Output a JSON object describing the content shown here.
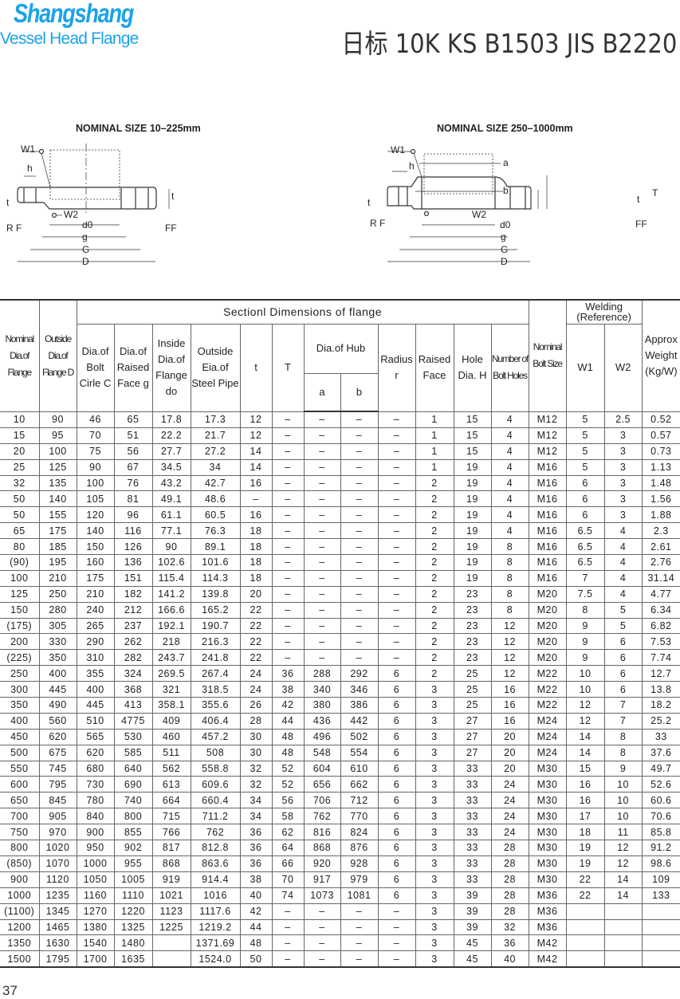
{
  "header": {
    "brand": "Shangshang",
    "brand_sub": "Vessel Head Flange",
    "title": "日标 10K KS B1503 JIS B2220"
  },
  "diagrams": [
    {
      "title": "NOMINAL SIZE 10–225mm",
      "labels": {
        "w1": "W1",
        "h": "h",
        "t_left": "t",
        "rf": "R F",
        "w2": "W2",
        "d0": "d0",
        "g": "g",
        "G": "G",
        "D": "D",
        "ff": "FF",
        "t_right": "t"
      }
    },
    {
      "title": "NOMINAL SIZE 250–1000mm",
      "labels": {
        "w1": "W1",
        "h": "h",
        "a": "a",
        "b": "b",
        "t_left": "t",
        "rf": "R F",
        "w2": "W2",
        "d0": "d0",
        "g": "g",
        "G": "G",
        "D": "D",
        "ff": "FF",
        "T": "T",
        "t_right": "t"
      }
    }
  ],
  "table": {
    "section_header": "Sectionl Dimensions of flange",
    "welding_header": "Welding (Reference)",
    "hub_header": "Dia.of Hub",
    "columns": {
      "nominal": "Nominal Dia.of Flange",
      "outside": "Outside Dia.of Flange D",
      "bolt_circle": "Dia.of Bolt Cirle C",
      "raised_dia": "Dia.of Raised Face g",
      "inside": "Inside Dia.of Flange do",
      "pipe": "Outside Eia.of Steel Pipe",
      "t": "t",
      "T": "T",
      "a": "a",
      "b": "b",
      "radius": "Radius r",
      "raised_face": "Raised Face",
      "hole": "Hole Dia. H",
      "holes": "Number of Bolt Holes",
      "bolt_size": "Nominal Bolt Size",
      "w1": "W1",
      "w2": "W2",
      "weight": "Approx Weight (Kg/W)"
    },
    "rows": [
      [
        "10",
        "90",
        "46",
        "65",
        "17.8",
        "17.3",
        "12",
        "–",
        "–",
        "–",
        "–",
        "1",
        "15",
        "4",
        "M12",
        "5",
        "2.5",
        "0.52"
      ],
      [
        "15",
        "95",
        "70",
        "51",
        "22.2",
        "21.7",
        "12",
        "–",
        "–",
        "–",
        "–",
        "1",
        "15",
        "4",
        "M12",
        "5",
        "3",
        "0.57"
      ],
      [
        "20",
        "100",
        "75",
        "56",
        "27.7",
        "27.2",
        "14",
        "–",
        "–",
        "–",
        "–",
        "1",
        "15",
        "4",
        "M12",
        "5",
        "3",
        "0.73"
      ],
      [
        "25",
        "125",
        "90",
        "67",
        "34.5",
        "34",
        "14",
        "–",
        "–",
        "–",
        "–",
        "1",
        "19",
        "4",
        "M16",
        "5",
        "3",
        "1.13"
      ],
      [
        "32",
        "135",
        "100",
        "76",
        "43.2",
        "42.7",
        "16",
        "–",
        "–",
        "–",
        "–",
        "2",
        "19",
        "4",
        "M16",
        "6",
        "3",
        "1.48"
      ],
      [
        "50",
        "140",
        "105",
        "81",
        "49.1",
        "48.6",
        "–",
        "–",
        "–",
        "–",
        "–",
        "2",
        "19",
        "4",
        "M16",
        "6",
        "3",
        "1.56"
      ],
      [
        "50",
        "155",
        "120",
        "96",
        "61.1",
        "60.5",
        "16",
        "–",
        "–",
        "–",
        "–",
        "2",
        "19",
        "4",
        "M16",
        "6",
        "3",
        "1.88"
      ],
      [
        "65",
        "175",
        "140",
        "116",
        "77.1",
        "76.3",
        "18",
        "–",
        "–",
        "–",
        "–",
        "2",
        "19",
        "4",
        "M16",
        "6.5",
        "4",
        "2.3"
      ],
      [
        "80",
        "185",
        "150",
        "126",
        "90",
        "89.1",
        "18",
        "–",
        "–",
        "–",
        "–",
        "2",
        "19",
        "8",
        "M16",
        "6.5",
        "4",
        "2.61"
      ],
      [
        "(90)",
        "195",
        "160",
        "136",
        "102.6",
        "101.6",
        "18",
        "–",
        "–",
        "–",
        "–",
        "2",
        "19",
        "8",
        "M16",
        "6.5",
        "4",
        "2.76"
      ],
      [
        "100",
        "210",
        "175",
        "151",
        "115.4",
        "114.3",
        "18",
        "–",
        "–",
        "–",
        "–",
        "2",
        "19",
        "8",
        "M16",
        "7",
        "4",
        "31.14"
      ],
      [
        "125",
        "250",
        "210",
        "182",
        "141.2",
        "139.8",
        "20",
        "–",
        "–",
        "–",
        "–",
        "2",
        "23",
        "8",
        "M20",
        "7.5",
        "4",
        "4.77"
      ],
      [
        "150",
        "280",
        "240",
        "212",
        "166.6",
        "165.2",
        "22",
        "–",
        "–",
        "–",
        "–",
        "2",
        "23",
        "8",
        "M20",
        "8",
        "5",
        "6.34"
      ],
      [
        "(175)",
        "305",
        "265",
        "237",
        "192.1",
        "190.7",
        "22",
        "–",
        "–",
        "–",
        "–",
        "2",
        "23",
        "12",
        "M20",
        "9",
        "5",
        "6.82"
      ],
      [
        "200",
        "330",
        "290",
        "262",
        "218",
        "216.3",
        "22",
        "–",
        "–",
        "–",
        "–",
        "2",
        "23",
        "12",
        "M20",
        "9",
        "6",
        "7.53"
      ],
      [
        "(225)",
        "350",
        "310",
        "282",
        "243.7",
        "241.8",
        "22",
        "–",
        "–",
        "–",
        "–",
        "2",
        "23",
        "12",
        "M20",
        "9",
        "6",
        "7.74"
      ],
      [
        "250",
        "400",
        "355",
        "324",
        "269.5",
        "267.4",
        "24",
        "36",
        "288",
        "292",
        "6",
        "2",
        "25",
        "12",
        "M22",
        "10",
        "6",
        "12.7"
      ],
      [
        "300",
        "445",
        "400",
        "368",
        "321",
        "318.5",
        "24",
        "38",
        "340",
        "346",
        "6",
        "3",
        "25",
        "16",
        "M22",
        "10",
        "6",
        "13.8"
      ],
      [
        "350",
        "490",
        "445",
        "413",
        "358.1",
        "355.6",
        "26",
        "42",
        "380",
        "386",
        "6",
        "3",
        "25",
        "16",
        "M22",
        "12",
        "7",
        "18.2"
      ],
      [
        "400",
        "560",
        "510",
        "4775",
        "409",
        "406.4",
        "28",
        "44",
        "436",
        "442",
        "6",
        "3",
        "27",
        "16",
        "M24",
        "12",
        "7",
        "25.2"
      ],
      [
        "450",
        "620",
        "565",
        "530",
        "460",
        "457.2",
        "30",
        "48",
        "496",
        "502",
        "6",
        "3",
        "27",
        "20",
        "M24",
        "14",
        "8",
        "33"
      ],
      [
        "500",
        "675",
        "620",
        "585",
        "511",
        "508",
        "30",
        "48",
        "548",
        "554",
        "6",
        "3",
        "27",
        "20",
        "M24",
        "14",
        "8",
        "37.6"
      ],
      [
        "550",
        "745",
        "680",
        "640",
        "562",
        "558.8",
        "32",
        "52",
        "604",
        "610",
        "6",
        "3",
        "33",
        "20",
        "M30",
        "15",
        "9",
        "49.7"
      ],
      [
        "600",
        "795",
        "730",
        "690",
        "613",
        "609.6",
        "32",
        "52",
        "656",
        "662",
        "6",
        "3",
        "33",
        "24",
        "M30",
        "16",
        "10",
        "52.6"
      ],
      [
        "650",
        "845",
        "780",
        "740",
        "664",
        "660.4",
        "34",
        "56",
        "706",
        "712",
        "6",
        "3",
        "33",
        "24",
        "M30",
        "16",
        "10",
        "60.6"
      ],
      [
        "700",
        "905",
        "840",
        "800",
        "715",
        "711.2",
        "34",
        "58",
        "762",
        "770",
        "6",
        "3",
        "33",
        "24",
        "M30",
        "17",
        "10",
        "70.6"
      ],
      [
        "750",
        "970",
        "900",
        "855",
        "766",
        "762",
        "36",
        "62",
        "816",
        "824",
        "6",
        "3",
        "33",
        "24",
        "M30",
        "18",
        "11",
        "85.8"
      ],
      [
        "800",
        "1020",
        "950",
        "902",
        "817",
        "812.8",
        "36",
        "64",
        "868",
        "876",
        "6",
        "3",
        "33",
        "28",
        "M30",
        "19",
        "12",
        "91.2"
      ],
      [
        "(850)",
        "1070",
        "1000",
        "955",
        "868",
        "863.6",
        "36",
        "66",
        "920",
        "928",
        "6",
        "3",
        "33",
        "28",
        "M30",
        "19",
        "12",
        "98.6"
      ],
      [
        "900",
        "1120",
        "1050",
        "1005",
        "919",
        "914.4",
        "38",
        "70",
        "917",
        "979",
        "6",
        "3",
        "33",
        "28",
        "M30",
        "22",
        "14",
        "109"
      ],
      [
        "1000",
        "1235",
        "1160",
        "1110",
        "1021",
        "1016",
        "40",
        "74",
        "1073",
        "1081",
        "6",
        "3",
        "39",
        "28",
        "M36",
        "22",
        "14",
        "133"
      ],
      [
        "(1100)",
        "1345",
        "1270",
        "1220",
        "1123",
        "1117.6",
        "42",
        "–",
        "–",
        "–",
        "–",
        "3",
        "39",
        "28",
        "M36",
        "",
        "",
        ""
      ],
      [
        "1200",
        "1465",
        "1380",
        "1325",
        "1225",
        "1219.2",
        "44",
        "–",
        "–",
        "–",
        "–",
        "3",
        "39",
        "32",
        "M36",
        "",
        "",
        ""
      ],
      [
        "1350",
        "1630",
        "1540",
        "1480",
        "",
        "1371.69",
        "48",
        "–",
        "–",
        "–",
        "–",
        "3",
        "45",
        "36",
        "M42",
        "",
        "",
        ""
      ],
      [
        "1500",
        "1795",
        "1700",
        "1635",
        "",
        "1524.0",
        "50",
        "–",
        "–",
        "–",
        "–",
        "3",
        "45",
        "40",
        "M42",
        "",
        "",
        ""
      ]
    ]
  },
  "footer": {
    "page_number": "37"
  }
}
